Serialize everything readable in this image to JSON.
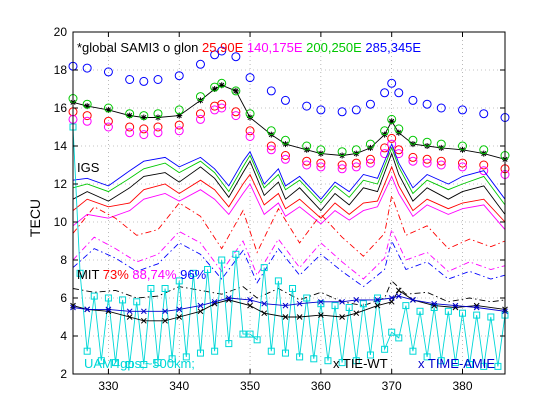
{
  "chart_data": {
    "type": "line",
    "title": "",
    "xlabel": "",
    "ylabel": "TECU",
    "xlim": [
      325,
      386
    ],
    "ylim": [
      2,
      20
    ],
    "xticks": [
      330,
      340,
      350,
      360,
      370,
      380
    ],
    "yticks": [
      2,
      4,
      6,
      8,
      10,
      12,
      14,
      16,
      18,
      20
    ],
    "grid": true,
    "annotations": [
      {
        "id": "sami3",
        "segments": [
          {
            "text": "*global SAMI3 o glon",
            "color": "#000000"
          },
          {
            "text": "25,90E",
            "color": "#ff0000"
          },
          {
            "text": "140,175E",
            "color": "#ff00ff"
          },
          {
            "text": "200,250E",
            "color": "#00c800"
          },
          {
            "text": "285,345E",
            "color": "#0000ff"
          }
        ]
      },
      {
        "id": "igs",
        "segments": [
          {
            "text": "IGS",
            "color": "#000000"
          }
        ]
      },
      {
        "id": "mit",
        "segments": [
          {
            "text": "MIT",
            "color": "#000000"
          },
          {
            "text": "73%",
            "color": "#ff0000"
          },
          {
            "text": "88,74%",
            "color": "#ff00ff"
          },
          {
            "text": "96%",
            "color": "#0000ff"
          }
        ]
      },
      {
        "id": "uam",
        "segments": [
          {
            "text": "UAM4gps,~500km;",
            "color": "#00d8d8"
          }
        ]
      },
      {
        "id": "tiewt",
        "segments": [
          {
            "text": "x TIE-WT",
            "color": "#000000"
          }
        ]
      },
      {
        "id": "timeamie",
        "segments": [
          {
            "text": "x TIME-AMIE",
            "color": "#0000cc"
          }
        ]
      }
    ],
    "series": [
      {
        "color": "#000000",
        "style": "solid",
        "marker": "star",
        "x": [
          325,
          327,
          330,
          333,
          335,
          337,
          340,
          343,
          345,
          346,
          348,
          350,
          353,
          355,
          358,
          360,
          363,
          365,
          367,
          369,
          370,
          371,
          373,
          375,
          377,
          380,
          383,
          386
        ],
        "y": [
          16.3,
          16.1,
          15.9,
          15.6,
          15.5,
          15.5,
          15.6,
          16.4,
          17.0,
          17.2,
          16.9,
          15.5,
          14.6,
          14.1,
          13.8,
          13.6,
          13.5,
          13.6,
          13.9,
          14.6,
          15.3,
          14.7,
          14.1,
          14.0,
          13.9,
          13.8,
          13.6,
          13.3
        ]
      },
      {
        "color": "#ff0000",
        "style": "none",
        "marker": "circle",
        "x": [
          325,
          327,
          330,
          333,
          335,
          337,
          340,
          343,
          345,
          346,
          348,
          350,
          353,
          355,
          358,
          360,
          363,
          365,
          367,
          369,
          370,
          371,
          373,
          375,
          377,
          380,
          383,
          386
        ],
        "y": [
          15.8,
          15.6,
          15.3,
          15.0,
          14.9,
          15.0,
          15.1,
          15.7,
          16.1,
          16.2,
          15.8,
          14.8,
          14.0,
          13.5,
          13.2,
          13.1,
          13.0,
          13.1,
          13.3,
          13.9,
          14.4,
          13.8,
          13.4,
          13.3,
          13.2,
          13.1,
          13.0,
          12.8
        ]
      },
      {
        "color": "#ff00ff",
        "style": "none",
        "marker": "circle",
        "x": [
          325,
          327,
          330,
          333,
          335,
          337,
          340,
          343,
          345,
          346,
          348,
          350,
          353,
          355,
          358,
          360,
          363,
          365,
          367,
          369,
          370,
          371,
          373,
          375,
          377,
          380,
          383,
          386
        ],
        "y": [
          15.4,
          15.3,
          15.0,
          14.7,
          14.6,
          14.7,
          14.8,
          15.4,
          15.9,
          16.0,
          15.6,
          14.5,
          13.8,
          13.3,
          13.0,
          12.9,
          12.8,
          12.9,
          13.1,
          13.6,
          14.1,
          13.6,
          13.2,
          13.1,
          13.0,
          12.9,
          12.7,
          12.5
        ]
      },
      {
        "color": "#00c800",
        "style": "none",
        "marker": "circle",
        "x": [
          325,
          327,
          330,
          333,
          335,
          337,
          340,
          343,
          345,
          346,
          348,
          350,
          353,
          355,
          358,
          360,
          363,
          365,
          367,
          369,
          370,
          371,
          373,
          375,
          377,
          380,
          383,
          386
        ],
        "y": [
          16.5,
          16.2,
          16.0,
          15.7,
          15.6,
          15.7,
          15.9,
          16.6,
          17.1,
          17.3,
          16.9,
          15.7,
          14.8,
          14.3,
          14.0,
          13.8,
          13.7,
          13.8,
          14.1,
          14.8,
          15.4,
          14.9,
          14.3,
          14.2,
          14.1,
          14.0,
          13.8,
          13.5
        ]
      },
      {
        "color": "#0000ff",
        "style": "none",
        "marker": "circle",
        "x": [
          325,
          327,
          330,
          333,
          335,
          337,
          340,
          343,
          345,
          346,
          348,
          350,
          353,
          355,
          358,
          360,
          363,
          365,
          367,
          369,
          370,
          371,
          373,
          375,
          377,
          380,
          383,
          386
        ],
        "y": [
          18.2,
          18.1,
          17.9,
          17.5,
          17.4,
          17.5,
          17.7,
          18.3,
          18.8,
          19.0,
          18.7,
          17.6,
          16.9,
          16.4,
          16.1,
          15.9,
          15.8,
          15.9,
          16.2,
          16.8,
          17.3,
          16.8,
          16.4,
          16.2,
          16.0,
          15.9,
          15.7,
          15.5
        ]
      },
      {
        "color": "#000000",
        "style": "solid",
        "marker": "none",
        "x": [
          325,
          327,
          330,
          333,
          335,
          338,
          340,
          343,
          345,
          347,
          349,
          350,
          352,
          354,
          355,
          357,
          360,
          362,
          364,
          366,
          368,
          370,
          371,
          373,
          375,
          378,
          380,
          383,
          386
        ],
        "y": [
          11.2,
          11.6,
          11.1,
          11.8,
          12.4,
          12.6,
          12.1,
          12.9,
          12.3,
          11.3,
          12.6,
          13.2,
          11.4,
          12.1,
          11.2,
          11.8,
          10.6,
          11.5,
          10.9,
          11.8,
          11.6,
          13.6,
          12.5,
          11.1,
          11.8,
          11.2,
          11.6,
          11.9,
          10.4
        ]
      },
      {
        "color": "#ff0000",
        "style": "solid",
        "marker": "none",
        "x": [
          325,
          327,
          330,
          333,
          335,
          338,
          340,
          343,
          345,
          347,
          349,
          350,
          352,
          354,
          355,
          357,
          360,
          362,
          364,
          366,
          368,
          370,
          371,
          373,
          375,
          378,
          380,
          383,
          386
        ],
        "y": [
          10.6,
          11.2,
          10.8,
          11.0,
          11.7,
          12.0,
          11.5,
          12.2,
          11.7,
          10.8,
          12.0,
          12.5,
          10.9,
          11.5,
          10.7,
          11.2,
          10.2,
          11.0,
          10.4,
          11.0,
          11.1,
          12.9,
          11.9,
          10.6,
          11.2,
          10.7,
          11.0,
          11.2,
          10.0
        ]
      },
      {
        "color": "#ff00ff",
        "style": "solid",
        "marker": "none",
        "x": [
          325,
          327,
          330,
          333,
          335,
          338,
          340,
          343,
          345,
          347,
          349,
          350,
          352,
          354,
          355,
          357,
          360,
          362,
          364,
          366,
          368,
          370,
          371,
          373,
          375,
          378,
          380,
          383,
          386
        ],
        "y": [
          9.8,
          10.4,
          10.2,
          10.6,
          11.2,
          11.5,
          11.1,
          11.7,
          11.2,
          10.4,
          11.5,
          12.0,
          10.4,
          11.0,
          10.3,
          10.8,
          9.9,
          10.6,
          10.1,
          10.6,
          10.8,
          12.4,
          11.5,
          10.3,
          10.9,
          10.4,
          10.7,
          10.9,
          9.6
        ]
      },
      {
        "color": "#00c800",
        "style": "solid",
        "marker": "none",
        "x": [
          325,
          327,
          330,
          333,
          335,
          338,
          340,
          343,
          345,
          347,
          349,
          350,
          352,
          354,
          355,
          357,
          360,
          362,
          364,
          366,
          368,
          370,
          371,
          373,
          375,
          378,
          380,
          383,
          386
        ],
        "y": [
          11.8,
          12.0,
          11.6,
          12.3,
          12.8,
          13.1,
          12.6,
          13.2,
          12.6,
          11.6,
          12.9,
          13.5,
          11.8,
          12.5,
          11.7,
          12.2,
          11.0,
          11.9,
          11.3,
          12.2,
          12.0,
          13.9,
          12.9,
          11.5,
          12.2,
          11.7,
          12.0,
          12.4,
          10.9
        ]
      },
      {
        "color": "#0000ff",
        "style": "solid",
        "marker": "none",
        "x": [
          325,
          327,
          330,
          333,
          335,
          338,
          340,
          343,
          345,
          347,
          349,
          350,
          352,
          354,
          355,
          357,
          360,
          362,
          364,
          366,
          368,
          370,
          371,
          373,
          375,
          378,
          380,
          383,
          386
        ],
        "y": [
          12.2,
          12.3,
          11.9,
          12.7,
          13.2,
          13.4,
          12.9,
          13.4,
          12.8,
          11.9,
          13.2,
          13.7,
          12.0,
          12.8,
          11.9,
          12.4,
          11.2,
          12.1,
          11.6,
          12.5,
          12.3,
          14.1,
          13.1,
          11.8,
          12.5,
          12.0,
          12.4,
          12.7,
          11.2
        ]
      },
      {
        "color": "#ff0000",
        "style": "dashdot",
        "marker": "none",
        "x": [
          325,
          328,
          331,
          334,
          337,
          340,
          343,
          346,
          349,
          351,
          354,
          357,
          360,
          363,
          366,
          369,
          370,
          372,
          375,
          378,
          381,
          384,
          386
        ],
        "y": [
          9.4,
          10.8,
          10.2,
          9.3,
          9.6,
          11.0,
          10.3,
          8.6,
          10.6,
          8.4,
          10.7,
          8.9,
          10.4,
          9.2,
          8.2,
          9.4,
          11.4,
          9.3,
          9.8,
          8.6,
          9.1,
          8.7,
          9.0
        ]
      },
      {
        "color": "#ff00ff",
        "style": "dashdot",
        "marker": "none",
        "x": [
          325,
          328,
          331,
          334,
          337,
          340,
          343,
          346,
          349,
          351,
          354,
          357,
          360,
          363,
          366,
          369,
          370,
          372,
          375,
          378,
          381,
          384,
          386
        ],
        "y": [
          8.0,
          9.2,
          8.6,
          7.9,
          8.3,
          9.5,
          8.9,
          7.4,
          9.0,
          7.2,
          9.1,
          7.6,
          8.9,
          7.9,
          7.0,
          8.1,
          9.6,
          8.0,
          8.4,
          7.4,
          7.9,
          7.5,
          7.7
        ]
      },
      {
        "color": "#0000ff",
        "style": "dashdot",
        "marker": "none",
        "x": [
          325,
          328,
          331,
          334,
          337,
          340,
          343,
          346,
          349,
          351,
          354,
          357,
          360,
          363,
          366,
          369,
          370,
          372,
          375,
          378,
          381,
          384,
          386
        ],
        "y": [
          7.6,
          8.6,
          8.1,
          7.4,
          7.8,
          8.9,
          8.3,
          7.0,
          8.5,
          6.8,
          8.6,
          7.2,
          8.3,
          7.4,
          6.6,
          7.5,
          9.0,
          7.5,
          7.9,
          7.0,
          7.4,
          7.0,
          7.2
        ]
      },
      {
        "color": "#000000",
        "style": "dashdot",
        "marker": "none",
        "x": [
          325,
          328,
          331,
          334,
          337,
          340,
          343,
          346,
          349,
          351,
          354,
          357,
          360,
          363,
          366,
          369,
          370,
          372,
          375,
          378,
          381,
          384,
          386
        ],
        "y": [
          6.5,
          6.3,
          6.4,
          6.0,
          6.1,
          6.6,
          6.4,
          6.2,
          6.6,
          6.0,
          6.5,
          5.9,
          6.3,
          5.8,
          5.6,
          6.0,
          6.9,
          6.2,
          6.3,
          5.8,
          6.0,
          5.8,
          5.9
        ]
      },
      {
        "color": "#00d8d8",
        "style": "solid",
        "marker": "square",
        "x": [
          325,
          326,
          327,
          328,
          329,
          330,
          331,
          332,
          333,
          334,
          335,
          336,
          337,
          338,
          339,
          340,
          341,
          342,
          343,
          344,
          345,
          346,
          347,
          348,
          349,
          350,
          351,
          352,
          353,
          354,
          355,
          356,
          357,
          358,
          359,
          360,
          361,
          362,
          363,
          364,
          365,
          366,
          367,
          368,
          369,
          370,
          371,
          372,
          373,
          374,
          375,
          376,
          377,
          378,
          379,
          380,
          381,
          382,
          383,
          384,
          385,
          386
        ],
        "y": [
          15.0,
          7.3,
          3.2,
          6.1,
          2.7,
          6.0,
          2.6,
          5.9,
          2.5,
          5.8,
          2.5,
          6.5,
          2.6,
          6.5,
          2.8,
          6.9,
          2.9,
          7.3,
          3.1,
          7.5,
          3.2,
          8.0,
          3.6,
          8.3,
          4.1,
          4.1,
          3.8,
          7.6,
          3.2,
          6.9,
          3.1,
          6.5,
          2.9,
          6.0,
          2.8,
          5.7,
          2.7,
          5.6,
          2.6,
          5.5,
          2.7,
          5.7,
          3.0,
          6.0,
          3.3,
          4.2,
          3.9,
          5.6,
          3.2,
          5.3,
          2.9,
          5.5,
          2.7,
          5.3,
          2.6,
          5.2,
          2.5,
          5.1,
          2.4,
          5.0,
          2.4,
          5.1
        ]
      },
      {
        "color": "#000000",
        "style": "solid",
        "marker": "x",
        "x": [
          325,
          327,
          330,
          333,
          335,
          338,
          340,
          343,
          345,
          347,
          350,
          352,
          355,
          357,
          360,
          363,
          365,
          368,
          370,
          371,
          373,
          376,
          379,
          382,
          386
        ],
        "y": [
          5.6,
          5.4,
          5.3,
          5.0,
          4.8,
          4.8,
          5.0,
          5.3,
          5.7,
          5.9,
          5.6,
          5.2,
          5.0,
          5.0,
          5.1,
          5.0,
          5.2,
          5.6,
          5.8,
          6.4,
          5.9,
          5.6,
          5.5,
          5.6,
          5.4
        ]
      },
      {
        "color": "#0000cc",
        "style": "solid",
        "marker": "x",
        "x": [
          325,
          327,
          330,
          333,
          335,
          338,
          340,
          343,
          345,
          347,
          350,
          352,
          355,
          357,
          360,
          363,
          365,
          368,
          370,
          371,
          373,
          376,
          379,
          382,
          386
        ],
        "y": [
          5.5,
          5.4,
          5.4,
          5.3,
          5.3,
          5.3,
          5.4,
          5.6,
          5.8,
          6.0,
          5.9,
          5.7,
          5.6,
          5.7,
          5.8,
          5.8,
          5.9,
          5.9,
          6.0,
          6.1,
          5.9,
          5.7,
          5.6,
          5.5,
          5.3
        ]
      }
    ]
  }
}
